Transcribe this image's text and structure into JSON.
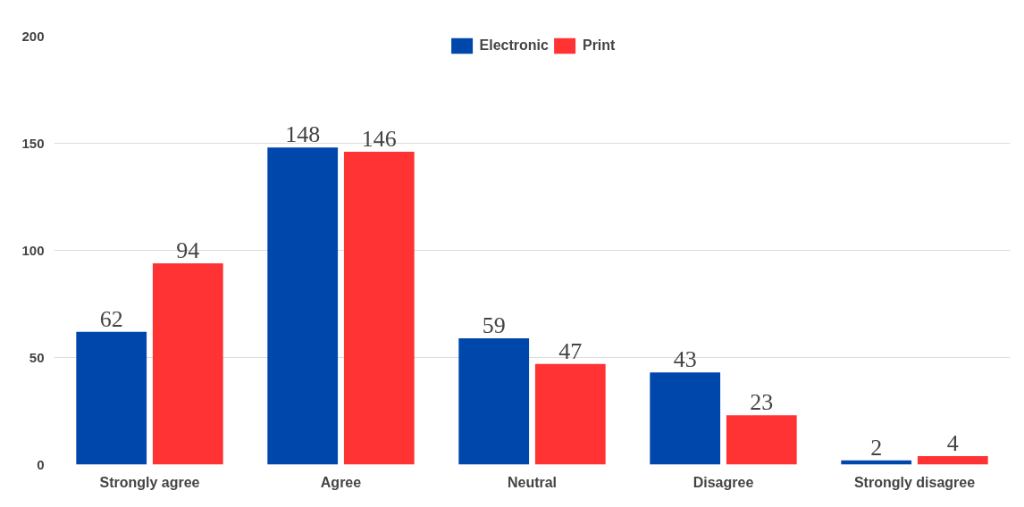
{
  "chart_data": {
    "type": "bar",
    "categories": [
      "Strongly agree",
      "Agree",
      "Neutral",
      "Disagree",
      "Strongly disagree"
    ],
    "series": [
      {
        "name": "Electronic",
        "color": "#0047ab",
        "values": [
          62,
          148,
          59,
          43,
          2
        ]
      },
      {
        "name": "Print",
        "color": "#ff3333",
        "values": [
          94,
          146,
          47,
          23,
          4
        ]
      }
    ],
    "ylim": [
      0,
      200
    ],
    "yticks": [
      0,
      50,
      100,
      150,
      200
    ],
    "grid": "y",
    "legend": "top",
    "data_labels": true
  }
}
